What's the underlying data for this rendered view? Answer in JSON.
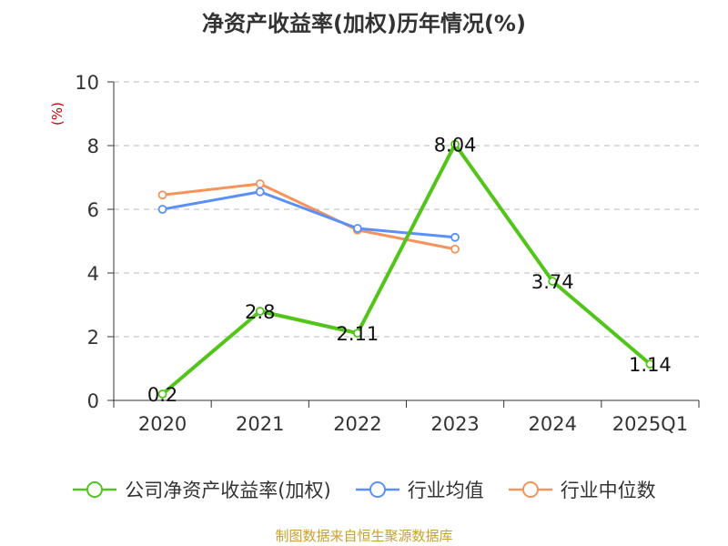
{
  "chart_data": {
    "type": "line",
    "title": "净资产收益率(加权)历年情况(%)",
    "ylabel": "(%)",
    "xlabel": "",
    "categories": [
      "2020",
      "2021",
      "2022",
      "2023",
      "2024",
      "2025Q1"
    ],
    "ylim": [
      0,
      10
    ],
    "yticks": [
      0,
      2,
      4,
      6,
      8,
      10
    ],
    "grid": "horizontal-dashed",
    "legend_position": "bottom",
    "series": [
      {
        "name": "公司净资产收益率(加权)",
        "color": "#52c41a",
        "values": [
          0.2,
          2.8,
          2.11,
          8.04,
          3.74,
          1.14
        ],
        "labels": [
          "0.2",
          "2.8",
          "2.11",
          "8.04",
          "3.74",
          "1.14"
        ]
      },
      {
        "name": "行业均值",
        "color": "#5b8ff9",
        "values": [
          6.0,
          6.55,
          5.4,
          5.12,
          null,
          null
        ]
      },
      {
        "name": "行业中位数",
        "color": "#f6925b",
        "values": [
          6.45,
          6.8,
          5.35,
          4.75,
          null,
          null
        ]
      }
    ]
  },
  "source": "制图数据来自恒生聚源数据库"
}
